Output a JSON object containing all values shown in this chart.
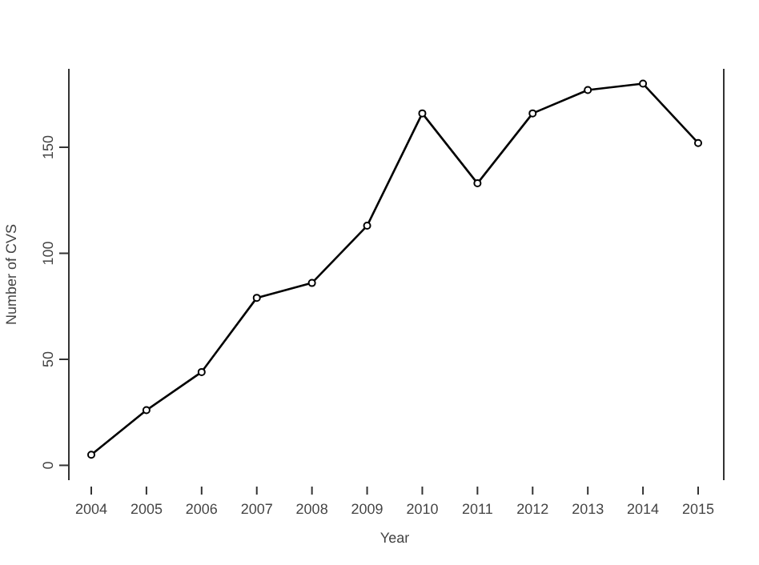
{
  "chart_data": {
    "type": "line",
    "xlabel": "Year",
    "ylabel": "Number of CVS",
    "categories": [
      "2004",
      "2005",
      "2006",
      "2007",
      "2008",
      "2009",
      "2010",
      "2011",
      "2012",
      "2013",
      "2014",
      "2015"
    ],
    "series": [
      {
        "color": "#000000",
        "values": [
          5,
          26,
          44,
          79,
          86,
          113,
          166,
          133,
          166,
          177,
          180,
          152
        ]
      }
    ],
    "ylim": [
      -7,
      187
    ],
    "yticks": [
      0,
      50,
      100,
      150
    ],
    "marker": "circle",
    "line_style": "solid"
  }
}
